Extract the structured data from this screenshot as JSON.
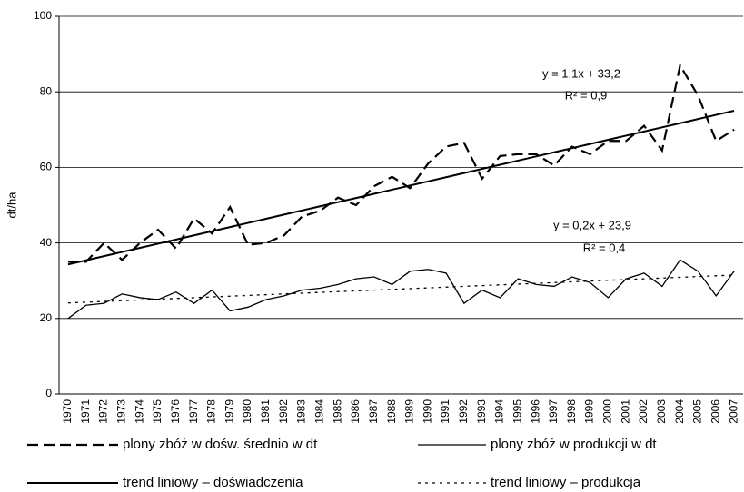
{
  "chart_data": {
    "type": "line",
    "y_label": "dt/ha",
    "categories": [
      "1970",
      "1971",
      "1972",
      "1973",
      "1974",
      "1975",
      "1976",
      "1977",
      "1978",
      "1979",
      "1980",
      "1981",
      "1982",
      "1983",
      "1984",
      "1985",
      "1986",
      "1987",
      "1988",
      "1989",
      "1990",
      "1991",
      "1992",
      "1993",
      "1994",
      "1995",
      "1996",
      "1997",
      "1998",
      "1999",
      "2000",
      "2001",
      "2002",
      "2003",
      "2004",
      "2005",
      "2006",
      "2007"
    ],
    "ylim": [
      0,
      100
    ],
    "yticks": [
      0,
      20,
      40,
      60,
      80,
      100
    ],
    "grid": true,
    "series": [
      {
        "name": "plony  zbóż w dośw. średnio w dt",
        "color": "#000000",
        "dash": "dashed",
        "values": [
          35,
          35,
          40,
          35.5,
          40,
          43.5,
          38.5,
          46.5,
          42.5,
          49.5,
          39.5,
          40,
          42,
          47,
          48.5,
          52,
          50,
          55,
          57.5,
          54.5,
          61,
          65.5,
          66.5,
          57,
          63,
          63.5,
          63.5,
          60.5,
          65.5,
          63.5,
          67,
          67,
          71,
          64.5,
          87,
          79,
          67,
          70
        ]
      },
      {
        "name": "plony  zbóż w produkcji  w dt",
        "color": "#000000",
        "dash": "solid",
        "values": [
          20,
          23.5,
          24,
          26.5,
          25.5,
          25,
          27,
          24,
          27.5,
          22,
          23,
          25,
          26,
          27.5,
          28,
          29,
          30.5,
          31,
          29,
          32.5,
          33,
          32,
          24,
          27.5,
          25.5,
          30.5,
          29,
          28.5,
          31,
          29.5,
          25.5,
          30.5,
          32,
          28.5,
          35.5,
          32.5,
          26,
          32.5
        ]
      },
      {
        "name": "trend liniowy – doświadczenia",
        "color": "#000000",
        "dash": "solid-thick",
        "values": [
          34.3,
          35.4,
          36.5,
          37.6,
          38.7,
          39.8,
          40.9,
          42,
          43.1,
          44.2,
          45.3,
          46.4,
          47.5,
          48.6,
          49.7,
          50.8,
          51.9,
          53,
          54.1,
          55.2,
          56.3,
          57.4,
          58.5,
          59.6,
          60.7,
          61.8,
          62.9,
          64,
          65.1,
          66.2,
          67.3,
          68.4,
          69.5,
          70.6,
          71.7,
          72.8,
          73.9,
          75
        ]
      },
      {
        "name": "trend liniowy – produkcja",
        "color": "#000000",
        "dash": "dotted",
        "values": [
          24.1,
          24.3,
          24.5,
          24.7,
          24.9,
          25.1,
          25.3,
          25.5,
          25.7,
          25.9,
          26.1,
          26.3,
          26.5,
          26.7,
          26.9,
          27.1,
          27.3,
          27.5,
          27.7,
          27.9,
          28.1,
          28.3,
          28.5,
          28.7,
          28.9,
          29.1,
          29.3,
          29.5,
          29.7,
          29.9,
          30.1,
          30.3,
          30.5,
          30.7,
          30.9,
          31.1,
          31.3,
          31.5
        ]
      }
    ],
    "annotations": [
      "y =  1,1x + 33,2",
      "R² = 0,9",
      "y = 0,2x + 23,9",
      "R² = 0,4"
    ]
  }
}
